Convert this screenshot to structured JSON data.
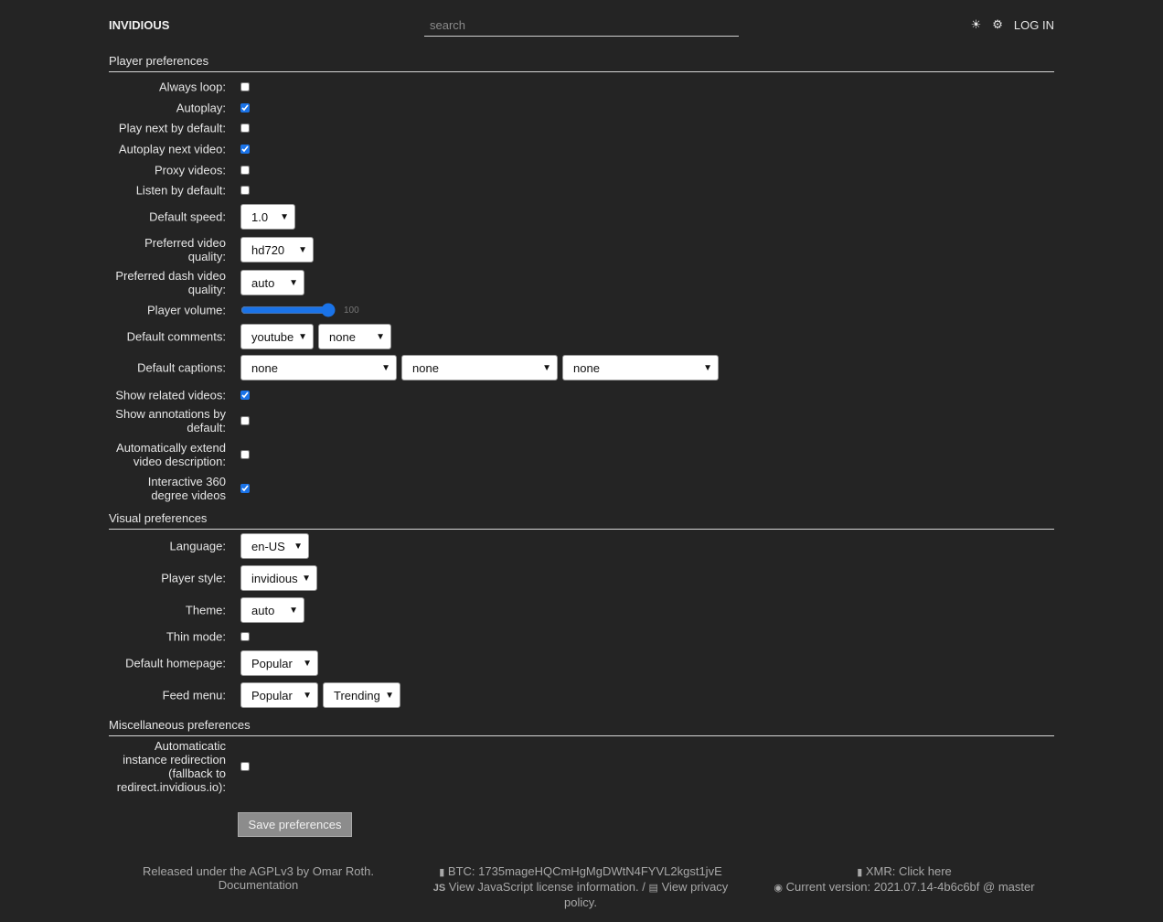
{
  "header": {
    "brand": "INVIDIOUS",
    "search_placeholder": "search",
    "theme_icon": "sun-icon",
    "prefs_icon": "gear-icon",
    "login": "LOG IN"
  },
  "sections": [
    {
      "title": "Player preferences",
      "rows": [
        {
          "label": "Always loop:",
          "type": "checkbox",
          "checked": false
        },
        {
          "label": "Autoplay:",
          "type": "checkbox",
          "checked": true
        },
        {
          "label": "Play next by default:",
          "type": "checkbox",
          "checked": false
        },
        {
          "label": "Autoplay next video:",
          "type": "checkbox",
          "checked": true
        },
        {
          "label": "Proxy videos:",
          "type": "checkbox",
          "checked": false
        },
        {
          "label": "Listen by default:",
          "type": "checkbox",
          "checked": false
        },
        {
          "label": "Default speed:",
          "type": "select",
          "values": [
            "1.0"
          ]
        },
        {
          "label": "Preferred video quality:",
          "type": "select",
          "values": [
            "hd720"
          ]
        },
        {
          "label": "Preferred dash video quality:",
          "type": "select",
          "values": [
            "auto"
          ]
        },
        {
          "label": "Player volume:",
          "type": "range",
          "value": 100
        },
        {
          "label": "Default comments:",
          "type": "select",
          "values": [
            "youtube",
            "none"
          ]
        },
        {
          "label": "Default captions:",
          "type": "select",
          "values": [
            "none",
            "none",
            "none"
          ]
        },
        {
          "label": "Show related videos:",
          "type": "checkbox",
          "checked": true
        },
        {
          "label": "Show annotations by default:",
          "type": "checkbox",
          "checked": false
        },
        {
          "label": "Automatically extend video description:",
          "type": "checkbox",
          "checked": false
        },
        {
          "label": "Interactive 360 degree videos",
          "type": "checkbox",
          "checked": true
        }
      ]
    },
    {
      "title": "Visual preferences",
      "rows": [
        {
          "label": "Language:",
          "type": "select",
          "values": [
            "en-US"
          ]
        },
        {
          "label": "Player style:",
          "type": "select",
          "values": [
            "invidious"
          ]
        },
        {
          "label": "Theme:",
          "type": "select",
          "values": [
            "auto"
          ]
        },
        {
          "label": "Thin mode:",
          "type": "checkbox",
          "checked": false
        },
        {
          "label": "Default homepage:",
          "type": "select",
          "values": [
            "Popular"
          ]
        },
        {
          "label": "Feed menu:",
          "type": "select",
          "values": [
            "Popular",
            "Trending"
          ]
        }
      ]
    },
    {
      "title": "Miscellaneous preferences",
      "rows": [
        {
          "label": "Automaticatic instance redirection (fallback to redirect.invidious.io):",
          "type": "checkbox",
          "checked": false
        }
      ]
    }
  ],
  "save_label": "Save preferences",
  "footer": {
    "license": "Released under the AGPLv3 by Omar Roth.",
    "docs": "Documentation",
    "btc": "BTC: 1735mageHQCmHgMgDWtN4FYVL2kgst1jvE",
    "js_license": "View JavaScript license information.",
    "separator": "/",
    "privacy": "View privacy policy.",
    "xmr": "XMR: Click here",
    "version": "Current version: 2021.07.14-4b6c6bf @ master"
  },
  "colors": {
    "background": "#242424",
    "accent": "#1a73e8"
  }
}
